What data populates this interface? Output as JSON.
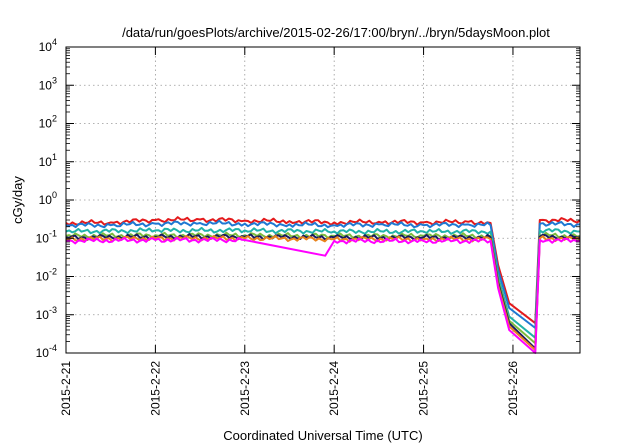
{
  "chart_data": {
    "type": "line",
    "title": "/data/run/goesPlots/archive/2015-02-26/17:00/bryn/../bryn/5daysMoon.plot",
    "xlabel": "Coordinated Universal Time (UTC)",
    "ylabel": "cGy/day",
    "y_scale": "log",
    "ylim": [
      0.0001,
      10000
    ],
    "y_ticks": [
      {
        "value": 0.0001,
        "base": "10",
        "exp": "-4"
      },
      {
        "value": 0.001,
        "base": "10",
        "exp": "-3"
      },
      {
        "value": 0.01,
        "base": "10",
        "exp": "-2"
      },
      {
        "value": 0.1,
        "base": "10",
        "exp": "-1"
      },
      {
        "value": 1,
        "base": "10",
        "exp": "0"
      },
      {
        "value": 10,
        "base": "10",
        "exp": "1"
      },
      {
        "value": 100,
        "base": "10",
        "exp": "2"
      },
      {
        "value": 1000,
        "base": "10",
        "exp": "3"
      },
      {
        "value": 10000,
        "base": "10",
        "exp": "4"
      }
    ],
    "xlim": [
      "2015-02-21T00:00",
      "2015-02-26T18:00"
    ],
    "x_ticks": [
      {
        "label": "2015-2-21",
        "value": "2015-02-21T00:00"
      },
      {
        "label": "2015-2-22",
        "value": "2015-02-22T00:00"
      },
      {
        "label": "2015-2-23",
        "value": "2015-02-23T00:00"
      },
      {
        "label": "2015-2-24",
        "value": "2015-02-24T00:00"
      },
      {
        "label": "2015-2-25",
        "value": "2015-02-25T00:00"
      },
      {
        "label": "2015-2-26",
        "value": "2015-02-26T00:00"
      }
    ],
    "grid": true,
    "legend": "none",
    "series": [
      {
        "color": "#e41a1c",
        "level": 0.27,
        "trough": 0.0006,
        "points": [
          [
            "2015-02-21T00:00",
            0.25
          ],
          [
            "2015-02-21T12:00",
            0.26
          ],
          [
            "2015-02-22T00:00",
            0.3
          ],
          [
            "2015-02-22T12:00",
            0.31
          ],
          [
            "2015-02-23T00:00",
            0.29
          ],
          [
            "2015-02-23T12:00",
            0.28
          ],
          [
            "2015-02-24T00:00",
            0.26
          ],
          [
            "2015-02-24T12:00",
            0.27
          ],
          [
            "2015-02-25T00:00",
            0.26
          ],
          [
            "2015-02-25T12:00",
            0.27
          ],
          [
            "2015-02-25T18:00",
            0.25
          ],
          [
            "2015-02-25T20:00",
            0.02
          ],
          [
            "2015-02-25T23:00",
            0.002
          ],
          [
            "2015-02-26T06:00",
            0.0006
          ],
          [
            "2015-02-26T07:12",
            0.3
          ],
          [
            "2015-02-26T18:00",
            0.29
          ]
        ]
      },
      {
        "color": "#1f78d2",
        "level": 0.23,
        "trough": 0.00045,
        "points": [
          [
            "2015-02-21T00:00",
            0.22
          ],
          [
            "2015-02-21T12:00",
            0.22
          ],
          [
            "2015-02-22T00:00",
            0.24
          ],
          [
            "2015-02-22T12:00",
            0.25
          ],
          [
            "2015-02-23T00:00",
            0.24
          ],
          [
            "2015-02-23T12:00",
            0.23
          ],
          [
            "2015-02-24T00:00",
            0.22
          ],
          [
            "2015-02-24T12:00",
            0.23
          ],
          [
            "2015-02-25T00:00",
            0.22
          ],
          [
            "2015-02-25T12:00",
            0.23
          ],
          [
            "2015-02-25T18:00",
            0.22
          ],
          [
            "2015-02-25T20:00",
            0.015
          ],
          [
            "2015-02-25T23:00",
            0.0015
          ],
          [
            "2015-02-26T06:00",
            0.00045
          ],
          [
            "2015-02-26T07:12",
            0.24
          ],
          [
            "2015-02-26T18:00",
            0.23
          ]
        ]
      },
      {
        "color": "#20b2aa",
        "level": 0.15,
        "trough": 0.00025,
        "points": [
          [
            "2015-02-21T00:00",
            0.15
          ],
          [
            "2015-02-22T00:00",
            0.16
          ],
          [
            "2015-02-23T00:00",
            0.16
          ],
          [
            "2015-02-24T00:00",
            0.15
          ],
          [
            "2015-02-25T00:00",
            0.15
          ],
          [
            "2015-02-25T18:00",
            0.15
          ],
          [
            "2015-02-25T20:00",
            0.01
          ],
          [
            "2015-02-25T23:00",
            0.0009
          ],
          [
            "2015-02-26T06:00",
            0.00025
          ],
          [
            "2015-02-26T07:12",
            0.16
          ],
          [
            "2015-02-26T18:00",
            0.15
          ]
        ]
      },
      {
        "color": "#7cbb3c",
        "level": 0.115,
        "trough": 0.00018,
        "points": [
          [
            "2015-02-21T00:00",
            0.115
          ],
          [
            "2015-02-22T00:00",
            0.12
          ],
          [
            "2015-02-23T00:00",
            0.12
          ],
          [
            "2015-02-24T00:00",
            0.115
          ],
          [
            "2015-02-25T00:00",
            0.115
          ],
          [
            "2015-02-25T18:00",
            0.115
          ],
          [
            "2015-02-25T20:00",
            0.008
          ],
          [
            "2015-02-25T23:00",
            0.0007
          ],
          [
            "2015-02-26T06:00",
            0.00018
          ],
          [
            "2015-02-26T07:12",
            0.12
          ],
          [
            "2015-02-26T18:00",
            0.115
          ]
        ]
      },
      {
        "color": "#1a1a60",
        "level": 0.105,
        "trough": 0.00013,
        "points": [
          [
            "2015-02-21T00:00",
            0.105
          ],
          [
            "2015-02-22T00:00",
            0.11
          ],
          [
            "2015-02-23T00:00",
            0.11
          ],
          [
            "2015-02-24T00:00",
            0.105
          ],
          [
            "2015-02-25T00:00",
            0.105
          ],
          [
            "2015-02-25T18:00",
            0.105
          ],
          [
            "2015-02-25T20:00",
            0.007
          ],
          [
            "2015-02-25T23:00",
            0.0006
          ],
          [
            "2015-02-26T06:00",
            0.00013
          ],
          [
            "2015-02-26T07:12",
            0.11
          ],
          [
            "2015-02-26T18:00",
            0.105
          ]
        ]
      },
      {
        "color": "#e8831c",
        "level": 0.095,
        "trough": 0.00012,
        "points": [
          [
            "2015-02-21T00:00",
            0.095
          ],
          [
            "2015-02-22T00:00",
            0.1
          ],
          [
            "2015-02-23T00:00",
            0.1
          ],
          [
            "2015-02-24T00:00",
            0.095
          ],
          [
            "2015-02-25T00:00",
            0.095
          ],
          [
            "2015-02-25T18:00",
            0.095
          ],
          [
            "2015-02-25T20:00",
            0.006
          ],
          [
            "2015-02-25T23:00",
            0.0005
          ],
          [
            "2015-02-26T06:00",
            0.00012
          ],
          [
            "2015-02-26T07:12",
            0.1
          ],
          [
            "2015-02-26T18:00",
            0.095
          ]
        ]
      },
      {
        "color": "#ff00ff",
        "level": 0.085,
        "trough": 0.0001,
        "points": [
          [
            "2015-02-21T00:00",
            0.085
          ],
          [
            "2015-02-22T00:00",
            0.09
          ],
          [
            "2015-02-23T00:00",
            0.09
          ],
          [
            "2015-02-23T21:36",
            0.035
          ],
          [
            "2015-02-24T00:00",
            0.085
          ],
          [
            "2015-02-25T00:00",
            0.085
          ],
          [
            "2015-02-25T18:00",
            0.085
          ],
          [
            "2015-02-25T20:00",
            0.005
          ],
          [
            "2015-02-25T23:00",
            0.0004
          ],
          [
            "2015-02-26T06:00",
            0.0001
          ],
          [
            "2015-02-26T07:12",
            0.09
          ],
          [
            "2015-02-26T18:00",
            0.085
          ]
        ]
      }
    ]
  }
}
